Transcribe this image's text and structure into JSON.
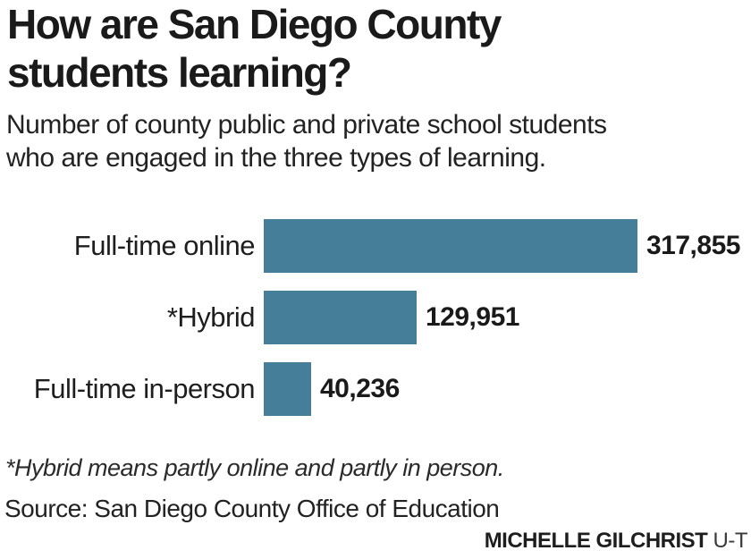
{
  "header": {
    "title_line1": "How are San Diego County",
    "title_line2": "students learning?",
    "subtitle_line1": "Number of county public and private school students",
    "subtitle_line2": "who are engaged in the three types of learning."
  },
  "footer": {
    "footnote": "*Hybrid means partly online and partly in person.",
    "source": "Source: San Diego County Office of Education",
    "credit_name": "MICHELLE GILCHRIST",
    "credit_org": "U-T"
  },
  "chart_data": {
    "type": "bar",
    "orientation": "horizontal",
    "title": "How are San Diego County students learning?",
    "subtitle": "Number of county public and private school students who are engaged in the three types of learning.",
    "categories": [
      "Full-time online",
      "*Hybrid",
      "Full-time in-person"
    ],
    "values": [
      317855,
      129951,
      40236
    ],
    "value_labels": [
      "317,855",
      "129,951",
      "40,236"
    ],
    "xlim": [
      0,
      317855
    ],
    "grid": false,
    "legend": false,
    "bar_color": "#447e98",
    "footnote": "*Hybrid means partly online and partly in person.",
    "source": "Source: San Diego County Office of Education",
    "credit": "MICHELLE GILCHRIST U-T"
  }
}
